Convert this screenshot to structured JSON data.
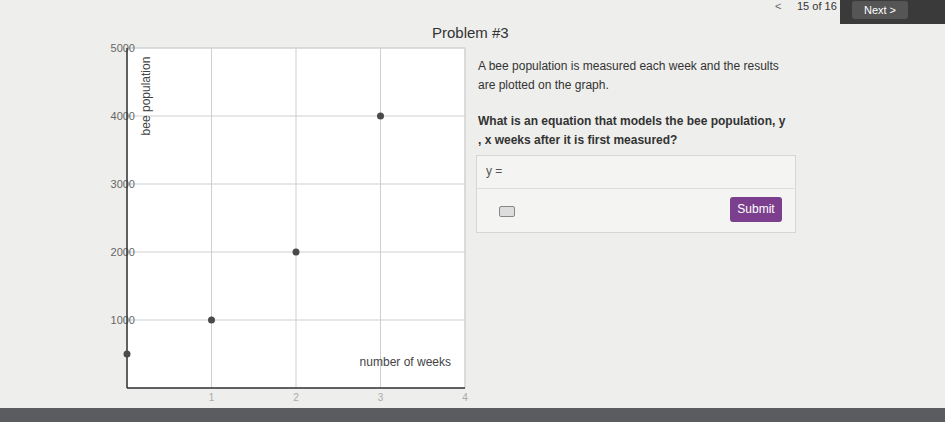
{
  "chart_data": {
    "type": "scatter",
    "x": [
      0,
      1,
      2,
      3
    ],
    "values": [
      500,
      1000,
      2000,
      4000
    ],
    "x_label": "number of weeks",
    "y_label": "bee population",
    "xlim": [
      0,
      4
    ],
    "xticks": [
      1,
      2,
      3,
      4
    ],
    "ylim": [
      0,
      5000
    ],
    "yticks": [
      1000,
      2000,
      3000,
      4000,
      5000
    ],
    "grid": true,
    "color": "#4a4a4a",
    "marker": "circle"
  },
  "page": {
    "heading": "Problem #3",
    "prompt": "A bee population is measured each week and the results are plotted on the graph.",
    "question": "What is an equation that models the bee population, y , x weeks after it is first measured?",
    "answer_prefix": "y =",
    "submit": "Submit",
    "back": "<",
    "progress": "15 of 16",
    "next": "Next >"
  }
}
